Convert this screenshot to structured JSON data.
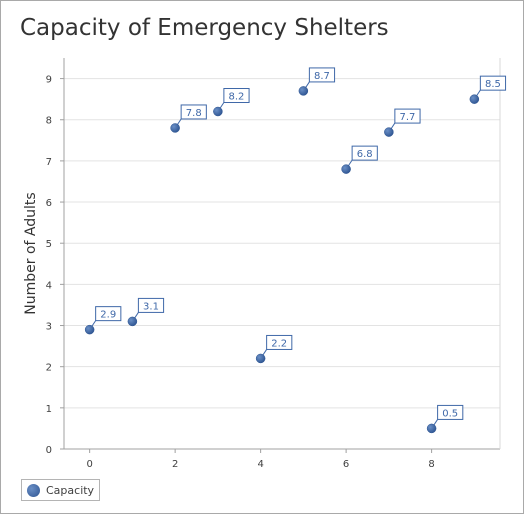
{
  "chart_data": {
    "type": "scatter",
    "title": "Capacity of Emergency Shelters",
    "xlabel": "",
    "ylabel": "Number of Adults",
    "xlim": [
      -0.6,
      9.6
    ],
    "ylim": [
      0,
      9.5
    ],
    "xticks": [
      0,
      2,
      4,
      6,
      8
    ],
    "yticks": [
      0,
      1,
      2,
      3,
      4,
      5,
      6,
      7,
      8,
      9
    ],
    "grid": "horizontal",
    "legend_position": "bottom-left",
    "series": [
      {
        "name": "Capacity",
        "color": "#3f68a8",
        "x": [
          0,
          1,
          2,
          3,
          4,
          5,
          6,
          7,
          8,
          9
        ],
        "y": [
          2.9,
          3.1,
          7.8,
          8.2,
          2.2,
          8.7,
          6.8,
          7.7,
          0.5,
          8.5
        ],
        "labels": [
          "2.9",
          "3.1",
          "7.8",
          "8.2",
          "2.2",
          "8.7",
          "6.8",
          "7.7",
          "0.5",
          "8.5"
        ]
      }
    ]
  }
}
